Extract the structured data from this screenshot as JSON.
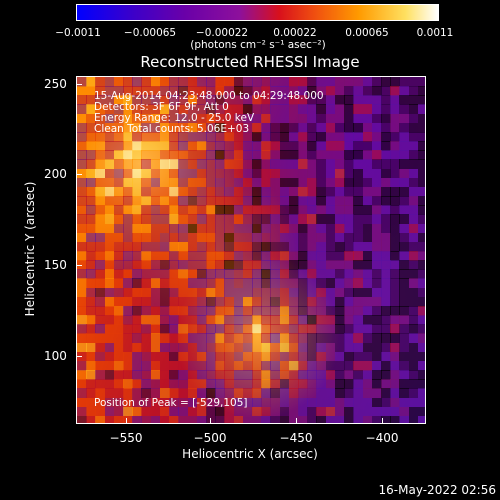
{
  "colorbar": {
    "ticks": [
      "−0.0011",
      "−0.00065",
      "−0.00022",
      "0.00022",
      "0.00065",
      "0.0011"
    ],
    "units_label": "(photons cm⁻² s⁻¹ asec⁻²)"
  },
  "title": "Reconstructed RHESSI Image",
  "annotations": {
    "time_range": "15-Aug-2014 04:23:48.000 to 04:29:48.000",
    "detectors": "Detectors: 3F 6F 9F, Att 0",
    "energy_range": "Energy Range: 12.0 - 25.0 keV",
    "method_counts": "Clean     Total counts: 5.06E+03",
    "peak_position": "Position of Peak = [-529,105]"
  },
  "x_axis": {
    "label": "Heliocentric X (arcsec)",
    "ticks": [
      "−550",
      "−500",
      "−450",
      "−400"
    ]
  },
  "y_axis": {
    "label": "Heliocentric Y (arcsec)",
    "ticks": [
      "250",
      "200",
      "150",
      "100"
    ]
  },
  "timestamp": "16-May-2022 02:56"
}
